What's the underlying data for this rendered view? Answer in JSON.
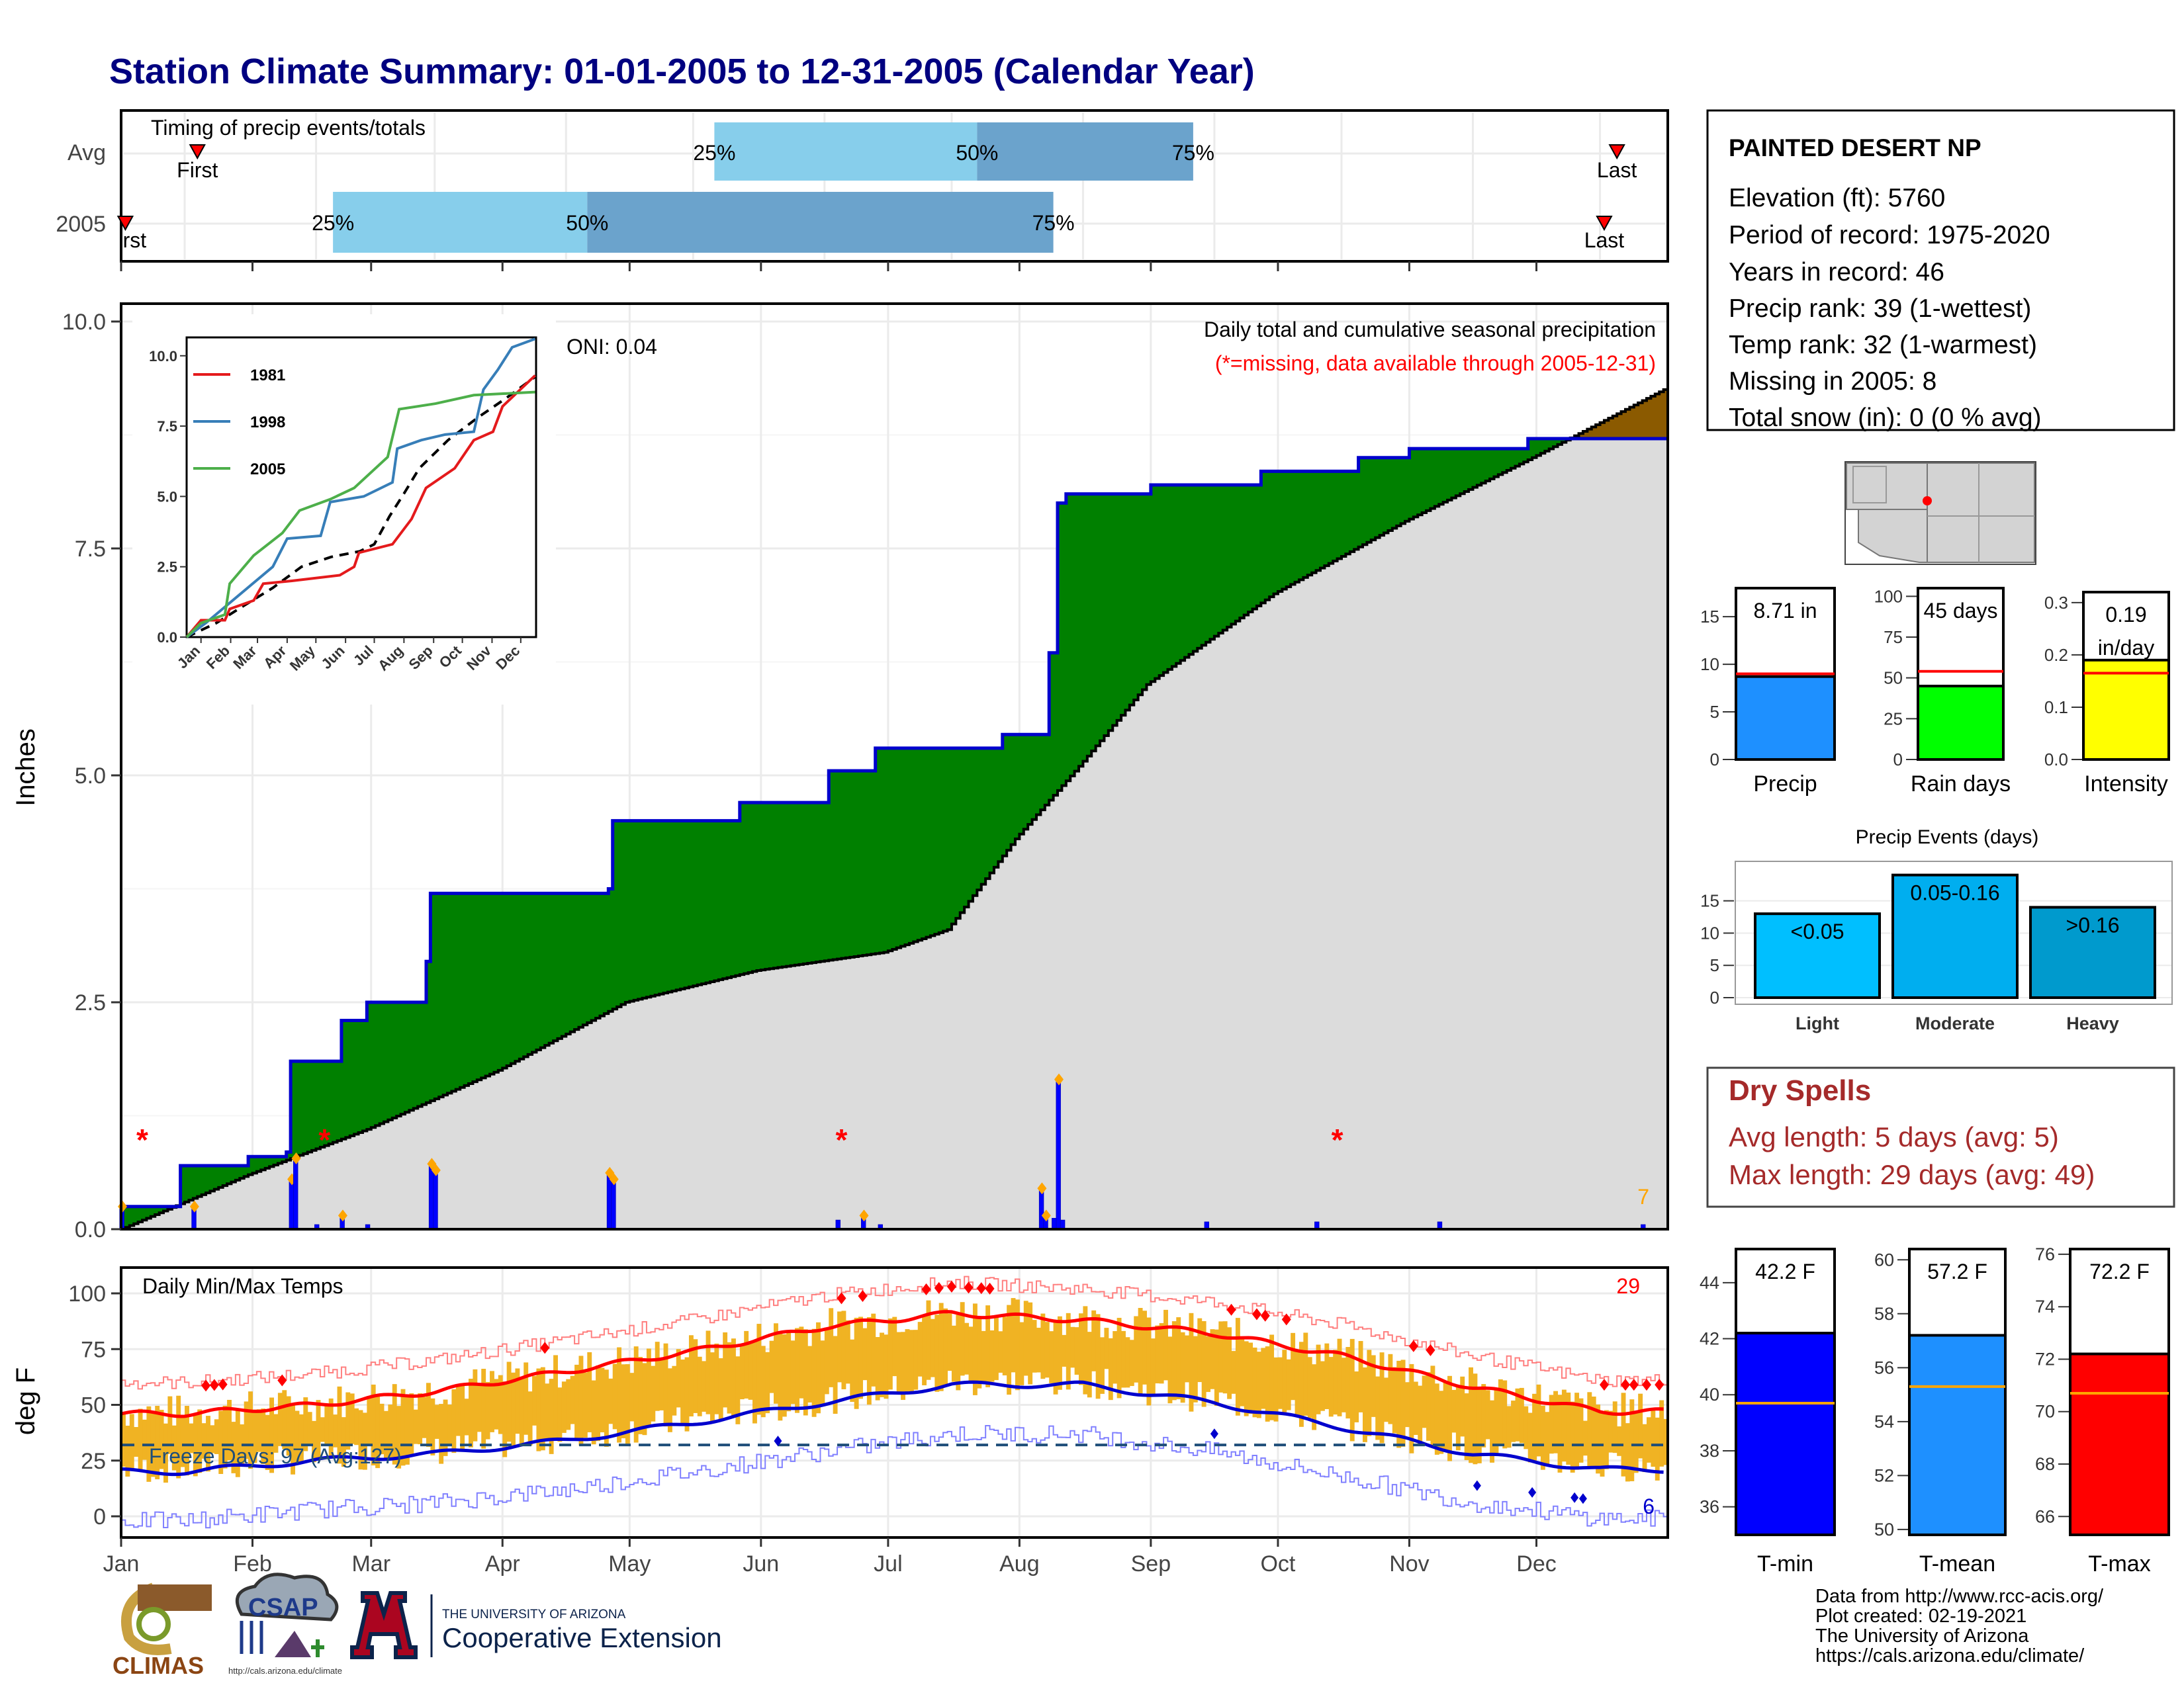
{
  "title": "Station Climate Summary: 01-01-2005 to 12-31-2005 (Calendar Year)",
  "station": {
    "name": "PAINTED DESERT NP",
    "lines": [
      "Elevation (ft): 5760",
      "Period of record: 1975-2020",
      "Years in record: 46",
      "Precip rank: 39 (1-wettest)",
      "Temp rank: 32 (1-warmest)",
      "Missing in 2005: 8",
      "Total snow (in): 0 (0 % avg)"
    ]
  },
  "months": [
    "Jan",
    "Feb",
    "Mar",
    "Apr",
    "May",
    "Jun",
    "Jul",
    "Aug",
    "Sep",
    "Oct",
    "Nov",
    "Dec"
  ],
  "colors": {
    "title": "#000080",
    "green": "#008000",
    "brown": "#8B5A00",
    "grey": "#DCDCDC",
    "blue_line": "#0000CD",
    "bar_blue": "#0000FF",
    "light_blue": "#87CEEB",
    "mid_blue": "#6BA3CC",
    "orange": "#FFA500",
    "red": "#FF0000",
    "temp_bar": "#F0B323",
    "dry_red": "#A52A2A"
  },
  "timing": {
    "title": "Timing of precip events/totals",
    "rows": [
      "Avg",
      "2005"
    ],
    "avg": {
      "first_day": 18,
      "p25_day": 140,
      "p50_day": 202,
      "p75_day": 253,
      "last_day": 353,
      "first_label": "First",
      "last_label": "Last"
    },
    "y2005": {
      "first_day": 1,
      "p25_day": 50,
      "p50_day": 110,
      "p75_day": 220,
      "last_day": 350,
      "first_label": "rst",
      "last_label": "Last"
    },
    "pct_labels": [
      "25%",
      "50%",
      "75%"
    ]
  },
  "precip": {
    "ylabel": "Inches",
    "caption1": "Daily total and cumulative seasonal precipitation",
    "caption2": "(*=missing, data available through 2005-12-31)",
    "oni": "ONI: 0.04",
    "corner_count": "7",
    "yticks": [
      "0.0",
      "2.5",
      "5.0",
      "7.5",
      "10.0"
    ],
    "missing_days": [
      5,
      48,
      170,
      287
    ]
  },
  "inset": {
    "legend": [
      "1981",
      "1998",
      "2005"
    ],
    "legend_colors": [
      "#E41A1C",
      "#377EB8",
      "#4DAF4A"
    ],
    "yticks": [
      "0.0",
      "2.5",
      "5.0",
      "7.5",
      "10.0"
    ],
    "xticks": [
      "Jan",
      "Feb",
      "Mar",
      "Apr",
      "May",
      "Jun",
      "Jul",
      "Aug",
      "Sep",
      "Oct",
      "Nov",
      "Dec"
    ]
  },
  "metrics": {
    "precip": {
      "label": "Precip",
      "value_text": "8.71 in",
      "value": 8.71,
      "avg": 9.0,
      "ymax": 18,
      "ticks": [
        "0",
        "5",
        "10",
        "15"
      ],
      "tick_vals": [
        0,
        5,
        10,
        15
      ],
      "color": "#1E90FF"
    },
    "rain_days": {
      "label": "Rain days",
      "value_text": "45 days",
      "value": 45,
      "avg": 54,
      "ymax": 105,
      "ticks": [
        "0",
        "25",
        "50",
        "75",
        "100"
      ],
      "tick_vals": [
        0,
        25,
        50,
        75,
        100
      ],
      "color": "#00FF00"
    },
    "intensity": {
      "label": "Intensity",
      "value_text": "0.19",
      "value_text2": "in/day",
      "value": 0.19,
      "avg": 0.165,
      "ymax": 0.32,
      "ticks": [
        "0.0",
        "0.1",
        "0.2",
        "0.3"
      ],
      "tick_vals": [
        0,
        0.1,
        0.2,
        0.3
      ],
      "color": "#FFFF00"
    }
  },
  "events": {
    "title": "Precip Events (days)",
    "ticks": [
      "0",
      "5",
      "10",
      "15"
    ],
    "categories": [
      "Light",
      "Moderate",
      "Heavy"
    ],
    "bar_labels": [
      "<0.05",
      "0.05-0.16",
      ">0.16"
    ],
    "values": [
      13,
      19,
      14
    ],
    "colors": [
      "#00BFFF",
      "#00AEEF",
      "#009ACD"
    ]
  },
  "dry_spells": {
    "title": "Dry Spells",
    "avg_line": "Avg length: 5 days (avg: 5)",
    "max_line": "Max length: 29 days (avg: 49)"
  },
  "temps": {
    "ylabel": "deg F",
    "title": "Daily Min/Max Temps",
    "freeze_label": "Freeze Days: 97 (Avg:127)",
    "hot_count": "29",
    "cold_count": "6",
    "yticks": [
      "0",
      "25",
      "50",
      "75",
      "100"
    ]
  },
  "temp_bars": {
    "tmin": {
      "label": "T-min",
      "value_text": "42.2 F",
      "value": 42.2,
      "avg": 39.7,
      "min": 35,
      "max": 45.2,
      "ticks": [
        "36",
        "38",
        "40",
        "42",
        "44"
      ],
      "tick_vals": [
        36,
        38,
        40,
        42,
        44
      ],
      "color": "#0000FF"
    },
    "tmean": {
      "label": "T-mean",
      "value_text": "57.2 F",
      "value": 57.2,
      "avg": 55.3,
      "min": 49.8,
      "max": 60.4,
      "ticks": [
        "50",
        "52",
        "54",
        "56",
        "58",
        "60"
      ],
      "tick_vals": [
        50,
        52,
        54,
        56,
        58,
        60
      ],
      "color": "#1E90FF"
    },
    "tmax": {
      "label": "T-max",
      "value_text": "72.2 F",
      "value": 72.2,
      "avg": 70.7,
      "min": 65.3,
      "max": 76.2,
      "ticks": [
        "66",
        "68",
        "70",
        "72",
        "74",
        "76"
      ],
      "tick_vals": [
        66,
        68,
        70,
        72,
        74,
        76
      ],
      "color": "#FF0000"
    }
  },
  "footer": {
    "lines": [
      "Data from http://www.rcc-acis.org/",
      "Plot created: 02-19-2021",
      "The University of Arizona",
      "https://cals.arizona.edu/climate/"
    ],
    "climas": "CLIMAS",
    "csap": "CSAP",
    "csap_url": "http://cals.arizona.edu/climate",
    "ua_small": "THE UNIVERSITY OF ARIZONA",
    "ua_big": "Cooperative Extension"
  },
  "chart_data": [
    {
      "type": "area",
      "title": "Daily total and cumulative seasonal precipitation",
      "ylabel": "Inches",
      "ylim": [
        0,
        10
      ],
      "series": [
        {
          "name": "2005",
          "x": [
            "01-01",
            "01-15",
            "01-31",
            "02-09",
            "02-10",
            "02-22",
            "02-28",
            "03-14",
            "03-15",
            "04-26",
            "04-27",
            "05-27",
            "06-17",
            "06-28",
            "07-28",
            "08-08",
            "08-10",
            "08-12",
            "09-01",
            "09-27",
            "10-20",
            "11-01",
            "11-29",
            "12-31"
          ],
          "values": [
            0.25,
            0.7,
            0.8,
            0.85,
            1.85,
            2.3,
            2.5,
            2.95,
            3.7,
            3.75,
            4.5,
            4.7,
            5.05,
            5.3,
            5.45,
            6.35,
            8.0,
            8.1,
            8.2,
            8.35,
            8.5,
            8.6,
            8.71,
            8.71
          ]
        },
        {
          "name": "Avg",
          "x": [
            "01-01",
            "01-31",
            "02-28",
            "03-31",
            "04-30",
            "05-31",
            "06-30",
            "07-15",
            "07-31",
            "08-15",
            "08-31",
            "09-30",
            "10-31",
            "11-30",
            "12-31"
          ],
          "values": [
            0.0,
            0.6,
            1.1,
            1.75,
            2.5,
            2.85,
            3.05,
            3.3,
            4.3,
            5.1,
            6.0,
            7.0,
            7.8,
            8.5,
            9.25
          ]
        }
      ]
    },
    {
      "type": "bar",
      "title": "Daily precipitation",
      "x": [
        "01-01",
        "01-18",
        "02-10",
        "02-11",
        "02-16",
        "02-22",
        "02-28",
        "03-15",
        "03-16",
        "04-26",
        "04-27",
        "06-19",
        "06-25",
        "06-29",
        "08-06",
        "08-07",
        "08-09",
        "08-10",
        "08-11",
        "09-14",
        "10-10",
        "11-08",
        "12-26"
      ],
      "values": [
        0.25,
        0.25,
        0.55,
        0.78,
        0.05,
        0.15,
        0.05,
        0.72,
        0.65,
        0.62,
        0.55,
        0.1,
        0.15,
        0.05,
        0.45,
        0.15,
        0.12,
        1.65,
        0.1,
        0.08,
        0.08,
        0.08,
        0.05
      ]
    },
    {
      "type": "line",
      "title": "Daily Min/Max Temps",
      "ylabel": "deg F",
      "ylim": [
        -10,
        108
      ],
      "x": [
        "Jan",
        "Feb",
        "Mar",
        "Apr",
        "May",
        "Jun",
        "Jul",
        "Aug",
        "Sep",
        "Oct",
        "Nov",
        "Dec"
      ],
      "series": [
        {
          "name": "avg max",
          "values": [
            46,
            50,
            56,
            65,
            74,
            85,
            91,
            88,
            82,
            72,
            58,
            47
          ]
        },
        {
          "name": "avg min",
          "values": [
            20,
            25,
            28,
            34,
            42,
            51,
            59,
            59,
            51,
            40,
            28,
            21
          ]
        }
      ]
    }
  ]
}
